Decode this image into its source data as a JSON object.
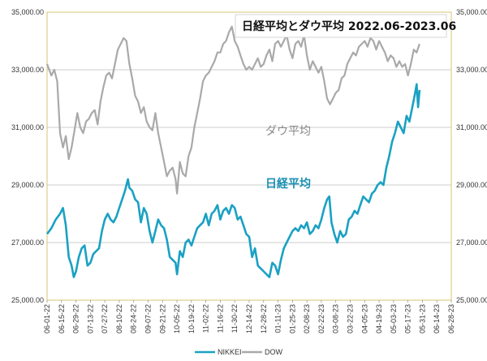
{
  "colors": {
    "nikkei": "#1aa1c3",
    "dow": "#a9a9a9",
    "grid": "#bdbdbd",
    "plot_border": "#d9c470",
    "nikkei_label": "#1a8fb3",
    "dow_label": "#8a8a8a"
  },
  "chart_data": {
    "type": "line",
    "title": "日経平均とダウ平均 2022.06-2023.06",
    "annotations": {
      "dow": "ダウ平均",
      "nikkei": "日経平均"
    },
    "xlabel": "",
    "ylabel": "",
    "ylim": [
      25000,
      35000
    ],
    "yticks": [
      25000,
      27000,
      29000,
      31000,
      33000,
      35000
    ],
    "ytick_labels": [
      "25,000.00",
      "27,000.00",
      "29,000.00",
      "31,000.00",
      "33,000.00",
      "35,000.00"
    ],
    "x_tick_labels": [
      "06-01-22",
      "06-15-22",
      "06-29-22",
      "07-13-22",
      "07-27-22",
      "08-10-22",
      "08-24-22",
      "09-07-22",
      "09-21-22",
      "10-05-22",
      "10-19-22",
      "11-02-22",
      "11-16-22",
      "11-30-22",
      "12-14-22",
      "12-28-22",
      "01-11-23",
      "01-25-23",
      "02-08-23",
      "02-22-23",
      "03-08-23",
      "03-22-23",
      "04-05-23",
      "04-19-23",
      "05-03-23",
      "05-17-23",
      "05-31-23",
      "06-14-23",
      "06-28-23"
    ],
    "grid": true,
    "legend": "bottom",
    "series": [
      {
        "name": "NIKKEI",
        "points": [
          [
            0,
            27300
          ],
          [
            0.3,
            27500
          ],
          [
            0.6,
            27800
          ],
          [
            0.9,
            28000
          ],
          [
            1.1,
            28200
          ],
          [
            1.3,
            27600
          ],
          [
            1.5,
            26500
          ],
          [
            1.7,
            26200
          ],
          [
            1.85,
            25800
          ],
          [
            2.0,
            26000
          ],
          [
            2.2,
            26500
          ],
          [
            2.4,
            26800
          ],
          [
            2.6,
            26900
          ],
          [
            2.8,
            26200
          ],
          [
            3.0,
            26300
          ],
          [
            3.2,
            26600
          ],
          [
            3.4,
            26700
          ],
          [
            3.6,
            26800
          ],
          [
            3.8,
            27400
          ],
          [
            4.0,
            27800
          ],
          [
            4.2,
            28000
          ],
          [
            4.4,
            27800
          ],
          [
            4.6,
            27700
          ],
          [
            4.8,
            27900
          ],
          [
            5.0,
            28200
          ],
          [
            5.2,
            28500
          ],
          [
            5.4,
            28800
          ],
          [
            5.6,
            29200
          ],
          [
            5.7,
            28900
          ],
          [
            5.9,
            28800
          ],
          [
            6.1,
            28500
          ],
          [
            6.3,
            28400
          ],
          [
            6.5,
            27700
          ],
          [
            6.7,
            28200
          ],
          [
            6.9,
            28000
          ],
          [
            7.1,
            27400
          ],
          [
            7.3,
            27000
          ],
          [
            7.5,
            27400
          ],
          [
            7.7,
            27800
          ],
          [
            7.9,
            27600
          ],
          [
            8.1,
            27500
          ],
          [
            8.3,
            27100
          ],
          [
            8.5,
            26500
          ],
          [
            8.7,
            26400
          ],
          [
            8.9,
            26300
          ],
          [
            9.0,
            25900
          ],
          [
            9.2,
            26700
          ],
          [
            9.4,
            26500
          ],
          [
            9.6,
            27000
          ],
          [
            9.8,
            27100
          ],
          [
            10.0,
            26900
          ],
          [
            10.2,
            27200
          ],
          [
            10.4,
            27500
          ],
          [
            10.6,
            27600
          ],
          [
            10.8,
            27700
          ],
          [
            11.0,
            28000
          ],
          [
            11.2,
            27600
          ],
          [
            11.4,
            28000
          ],
          [
            11.6,
            28100
          ],
          [
            11.8,
            28300
          ],
          [
            12.0,
            27800
          ],
          [
            12.2,
            28100
          ],
          [
            12.4,
            28200
          ],
          [
            12.6,
            28000
          ],
          [
            12.8,
            28300
          ],
          [
            13.0,
            28200
          ],
          [
            13.2,
            27800
          ],
          [
            13.4,
            27900
          ],
          [
            13.6,
            27600
          ],
          [
            13.8,
            27300
          ],
          [
            14.0,
            27200
          ],
          [
            14.2,
            26500
          ],
          [
            14.4,
            26800
          ],
          [
            14.6,
            26200
          ],
          [
            14.8,
            26100
          ],
          [
            15.0,
            26000
          ],
          [
            15.2,
            25900
          ],
          [
            15.4,
            25800
          ],
          [
            15.6,
            26300
          ],
          [
            15.8,
            26200
          ],
          [
            16.0,
            25900
          ],
          [
            16.2,
            26400
          ],
          [
            16.4,
            26800
          ],
          [
            16.6,
            27000
          ],
          [
            16.8,
            27200
          ],
          [
            17.0,
            27400
          ],
          [
            17.2,
            27500
          ],
          [
            17.4,
            27400
          ],
          [
            17.6,
            27600
          ],
          [
            17.8,
            27500
          ],
          [
            18.0,
            27700
          ],
          [
            18.2,
            27300
          ],
          [
            18.4,
            27400
          ],
          [
            18.6,
            27600
          ],
          [
            18.8,
            27500
          ],
          [
            19.0,
            27800
          ],
          [
            19.2,
            28200
          ],
          [
            19.4,
            28500
          ],
          [
            19.55,
            28600
          ],
          [
            19.7,
            27700
          ],
          [
            19.9,
            27300
          ],
          [
            20.1,
            27000
          ],
          [
            20.3,
            27400
          ],
          [
            20.5,
            27200
          ],
          [
            20.7,
            27300
          ],
          [
            20.9,
            27800
          ],
          [
            21.1,
            27900
          ],
          [
            21.3,
            28100
          ],
          [
            21.5,
            28000
          ],
          [
            21.7,
            28300
          ],
          [
            21.9,
            28600
          ],
          [
            22.1,
            28500
          ],
          [
            22.3,
            28400
          ],
          [
            22.5,
            28700
          ],
          [
            22.7,
            28800
          ],
          [
            22.9,
            29000
          ],
          [
            23.1,
            29100
          ],
          [
            23.3,
            29000
          ],
          [
            23.5,
            29600
          ],
          [
            23.7,
            30000
          ],
          [
            23.9,
            30500
          ],
          [
            24.1,
            30800
          ],
          [
            24.3,
            31200
          ],
          [
            24.5,
            31000
          ],
          [
            24.7,
            30800
          ],
          [
            24.9,
            31400
          ],
          [
            25.1,
            31200
          ],
          [
            25.3,
            31700
          ],
          [
            25.5,
            32200
          ],
          [
            25.6,
            32500
          ],
          [
            25.7,
            31700
          ],
          [
            25.8,
            32300
          ]
        ]
      },
      {
        "name": "DOW",
        "points": [
          [
            0,
            33200
          ],
          [
            0.3,
            32800
          ],
          [
            0.5,
            33000
          ],
          [
            0.7,
            32600
          ],
          [
            0.9,
            30800
          ],
          [
            1.1,
            30300
          ],
          [
            1.3,
            30700
          ],
          [
            1.5,
            29900
          ],
          [
            1.7,
            30300
          ],
          [
            1.9,
            30900
          ],
          [
            2.1,
            31500
          ],
          [
            2.3,
            31000
          ],
          [
            2.5,
            30800
          ],
          [
            2.7,
            31200
          ],
          [
            2.9,
            31300
          ],
          [
            3.1,
            31500
          ],
          [
            3.3,
            31600
          ],
          [
            3.5,
            31100
          ],
          [
            3.7,
            31900
          ],
          [
            3.9,
            32400
          ],
          [
            4.1,
            32800
          ],
          [
            4.3,
            32900
          ],
          [
            4.5,
            32700
          ],
          [
            4.7,
            33200
          ],
          [
            4.9,
            33700
          ],
          [
            5.1,
            33900
          ],
          [
            5.3,
            34100
          ],
          [
            5.5,
            34000
          ],
          [
            5.7,
            33200
          ],
          [
            5.9,
            32700
          ],
          [
            6.1,
            32100
          ],
          [
            6.3,
            31900
          ],
          [
            6.5,
            31500
          ],
          [
            6.7,
            31700
          ],
          [
            6.9,
            31200
          ],
          [
            7.1,
            31000
          ],
          [
            7.3,
            30900
          ],
          [
            7.5,
            31500
          ],
          [
            7.7,
            30800
          ],
          [
            7.9,
            30300
          ],
          [
            8.1,
            29800
          ],
          [
            8.3,
            29300
          ],
          [
            8.5,
            29500
          ],
          [
            8.7,
            29600
          ],
          [
            8.9,
            29200
          ],
          [
            9.0,
            28700
          ],
          [
            9.2,
            29800
          ],
          [
            9.4,
            29400
          ],
          [
            9.6,
            29300
          ],
          [
            9.8,
            30000
          ],
          [
            10.0,
            30300
          ],
          [
            10.2,
            31000
          ],
          [
            10.4,
            31500
          ],
          [
            10.6,
            32000
          ],
          [
            10.8,
            32600
          ],
          [
            11.0,
            32800
          ],
          [
            11.2,
            32900
          ],
          [
            11.4,
            33100
          ],
          [
            11.6,
            33300
          ],
          [
            11.8,
            33600
          ],
          [
            12.0,
            33600
          ],
          [
            12.2,
            33900
          ],
          [
            12.4,
            34000
          ],
          [
            12.6,
            34300
          ],
          [
            12.8,
            34500
          ],
          [
            13.0,
            34000
          ],
          [
            13.2,
            33800
          ],
          [
            13.4,
            33500
          ],
          [
            13.6,
            33200
          ],
          [
            13.8,
            33000
          ],
          [
            14.0,
            33100
          ],
          [
            14.2,
            33000
          ],
          [
            14.4,
            33200
          ],
          [
            14.6,
            33400
          ],
          [
            14.8,
            33100
          ],
          [
            15.0,
            33200
          ],
          [
            15.2,
            33500
          ],
          [
            15.4,
            33700
          ],
          [
            15.6,
            33300
          ],
          [
            15.8,
            33900
          ],
          [
            16.0,
            34000
          ],
          [
            16.2,
            33800
          ],
          [
            16.4,
            34000
          ],
          [
            16.6,
            34200
          ],
          [
            16.8,
            33700
          ],
          [
            17.0,
            33400
          ],
          [
            17.2,
            33900
          ],
          [
            17.4,
            34000
          ],
          [
            17.6,
            33800
          ],
          [
            17.8,
            34200
          ],
          [
            18.0,
            33500
          ],
          [
            18.2,
            33000
          ],
          [
            18.4,
            33300
          ],
          [
            18.6,
            33100
          ],
          [
            18.8,
            32900
          ],
          [
            19.0,
            33100
          ],
          [
            19.2,
            32600
          ],
          [
            19.4,
            32000
          ],
          [
            19.6,
            31800
          ],
          [
            19.8,
            32000
          ],
          [
            20.0,
            32200
          ],
          [
            20.2,
            32300
          ],
          [
            20.4,
            32700
          ],
          [
            20.6,
            32800
          ],
          [
            20.8,
            33200
          ],
          [
            21.0,
            33400
          ],
          [
            21.2,
            33600
          ],
          [
            21.4,
            33500
          ],
          [
            21.6,
            33800
          ],
          [
            21.8,
            33900
          ],
          [
            22.0,
            34000
          ],
          [
            22.2,
            33800
          ],
          [
            22.4,
            34100
          ],
          [
            22.6,
            34000
          ],
          [
            22.8,
            33700
          ],
          [
            23.0,
            34000
          ],
          [
            23.2,
            33800
          ],
          [
            23.4,
            33600
          ],
          [
            23.6,
            33300
          ],
          [
            23.8,
            33500
          ],
          [
            24.0,
            33400
          ],
          [
            24.2,
            33100
          ],
          [
            24.4,
            33300
          ],
          [
            24.6,
            33100
          ],
          [
            24.8,
            33200
          ],
          [
            25.0,
            32800
          ],
          [
            25.2,
            33200
          ],
          [
            25.4,
            33700
          ],
          [
            25.6,
            33600
          ],
          [
            25.8,
            33900
          ]
        ]
      }
    ]
  }
}
